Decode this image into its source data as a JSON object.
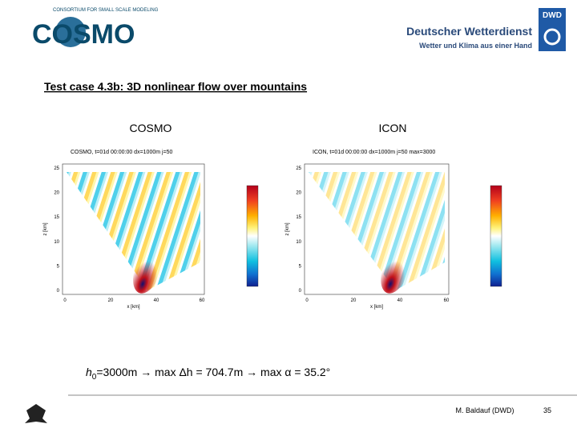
{
  "header": {
    "logo_text": "COSMO",
    "logo_subtitle": "CONSORTIUM FOR SMALL SCALE MODELING",
    "dwd_badge": "DWD",
    "dwd_name": "Deutscher Wetterdienst",
    "dwd_slogan": "Wetter und Klima aus einer Hand"
  },
  "title": "Test case 4.3b: 3D nonlinear flow over mountains",
  "panels": [
    {
      "label": "COSMO",
      "plot_title": "COSMO, t=01d 00:00:00 dx=1000m j=50",
      "y_label": "z [km]",
      "x_label": "x [km]",
      "yticks": [
        "25",
        "20",
        "15",
        "10",
        "5",
        "0"
      ],
      "xticks": [
        "0",
        "20",
        "40",
        "60"
      ]
    },
    {
      "label": "ICON",
      "plot_title": "ICON, t=01d 00:00:00 dx=1000m j=50 max=3000",
      "y_label": "z [km]",
      "x_label": "x [km]",
      "yticks": [
        "25",
        "20",
        "15",
        "10",
        "5",
        "0"
      ],
      "xticks": [
        "0",
        "20",
        "40",
        "60"
      ]
    }
  ],
  "formula": {
    "h": "h",
    "sub": "0",
    "rest": "=3000m → max Δh = 704.7m → max α = 35.2°"
  },
  "footer": {
    "author": "M. Baldauf (DWD)",
    "page": "35"
  }
}
